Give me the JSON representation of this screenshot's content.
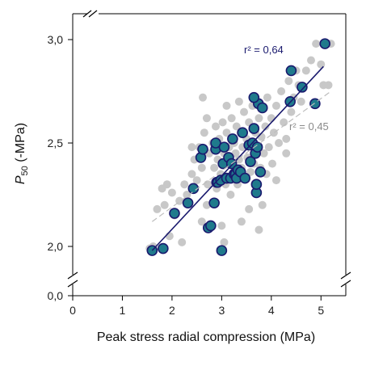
{
  "chart_data": {
    "type": "scatter",
    "xlabel": "Peak stress radial compression (MPa)",
    "ylabel_main": "P",
    "ylabel_sub": "50",
    "ylabel_rest": " (-MPa)",
    "xlim": [
      0,
      5.5
    ],
    "ylim_broken": [
      2.0,
      3.0
    ],
    "x_ticks": [
      {
        "value": 0,
        "label": "0"
      },
      {
        "value": 1,
        "label": "1"
      },
      {
        "value": 2,
        "label": "2"
      },
      {
        "value": 3,
        "label": "3"
      },
      {
        "value": 4,
        "label": "4"
      },
      {
        "value": 5,
        "label": "5"
      }
    ],
    "y_ticks": [
      {
        "value": 2.0,
        "label": "2,0"
      },
      {
        "value": 2.5,
        "label": "2,5"
      },
      {
        "value": 3.0,
        "label": "3,0"
      }
    ],
    "y_zero_label": "0,0",
    "series": [
      {
        "color": "#c8c8c8",
        "points": [
          [
            1.55,
            1.99
          ],
          [
            1.62,
            2.0
          ],
          [
            1.7,
            2.18
          ],
          [
            1.85,
            2.2
          ],
          [
            1.95,
            2.05
          ],
          [
            2.05,
            2.15
          ],
          [
            2.15,
            2.22
          ],
          [
            2.25,
            2.3
          ],
          [
            2.3,
            2.25
          ],
          [
            2.4,
            2.35
          ],
          [
            2.45,
            2.42
          ],
          [
            2.5,
            2.32
          ],
          [
            2.55,
            2.48
          ],
          [
            2.6,
            2.38
          ],
          [
            2.62,
            2.72
          ],
          [
            2.65,
            2.55
          ],
          [
            2.7,
            2.2
          ],
          [
            2.72,
            2.3
          ],
          [
            2.75,
            2.45
          ],
          [
            2.8,
            2.1
          ],
          [
            2.82,
            2.5
          ],
          [
            2.85,
            2.38
          ],
          [
            2.88,
            2.58
          ],
          [
            2.9,
            2.28
          ],
          [
            2.92,
            2.42
          ],
          [
            2.95,
            2.52
          ],
          [
            2.98,
            2.35
          ],
          [
            3.0,
            2.1
          ],
          [
            3.02,
            2.6
          ],
          [
            3.05,
            2.45
          ],
          [
            3.08,
            2.3
          ],
          [
            3.1,
            2.55
          ],
          [
            3.12,
            2.4
          ],
          [
            3.15,
            2.48
          ],
          [
            3.18,
            2.25
          ],
          [
            3.2,
            2.62
          ],
          [
            3.22,
            2.35
          ],
          [
            3.25,
            2.5
          ],
          [
            3.28,
            2.45
          ],
          [
            3.3,
            2.58
          ],
          [
            3.32,
            2.3
          ],
          [
            3.35,
            2.42
          ],
          [
            3.38,
            2.55
          ],
          [
            3.4,
            2.38
          ],
          [
            3.42,
            2.48
          ],
          [
            3.45,
            2.65
          ],
          [
            3.48,
            2.33
          ],
          [
            3.5,
            2.52
          ],
          [
            3.52,
            2.43
          ],
          [
            3.55,
            2.6
          ],
          [
            3.58,
            2.36
          ],
          [
            3.6,
            2.5
          ],
          [
            3.62,
            2.68
          ],
          [
            3.65,
            2.4
          ],
          [
            3.68,
            2.55
          ],
          [
            3.7,
            2.3
          ],
          [
            3.72,
            2.46
          ],
          [
            3.75,
            2.62
          ],
          [
            3.78,
            2.38
          ],
          [
            3.8,
            2.53
          ],
          [
            3.82,
            2.2
          ],
          [
            3.85,
            2.45
          ],
          [
            3.88,
            2.58
          ],
          [
            3.9,
            2.35
          ],
          [
            3.92,
            2.72
          ],
          [
            3.95,
            2.48
          ],
          [
            4.0,
            2.62
          ],
          [
            4.02,
            2.4
          ],
          [
            4.05,
            2.55
          ],
          [
            4.1,
            2.68
          ],
          [
            4.15,
            2.5
          ],
          [
            4.2,
            2.75
          ],
          [
            4.25,
            2.6
          ],
          [
            4.3,
            2.52
          ],
          [
            4.35,
            2.8
          ],
          [
            4.4,
            2.65
          ],
          [
            4.45,
            2.72
          ],
          [
            4.5,
            2.85
          ],
          [
            4.55,
            2.78
          ],
          [
            4.6,
            2.7
          ],
          [
            4.7,
            2.85
          ],
          [
            4.8,
            2.9
          ],
          [
            4.9,
            2.98
          ],
          [
            5.0,
            2.88
          ],
          [
            5.05,
            2.78
          ],
          [
            5.1,
            2.98
          ],
          [
            5.15,
            2.78
          ],
          [
            5.2,
            2.98
          ],
          [
            2.2,
            2.02
          ],
          [
            2.6,
            2.12
          ],
          [
            3.05,
            2.02
          ],
          [
            3.4,
            2.12
          ],
          [
            3.55,
            2.18
          ],
          [
            3.75,
            2.08
          ],
          [
            4.1,
            2.32
          ],
          [
            4.3,
            2.45
          ],
          [
            2.4,
            2.48
          ],
          [
            2.7,
            2.62
          ],
          [
            3.1,
            2.68
          ],
          [
            3.35,
            2.7
          ],
          [
            1.8,
            2.28
          ],
          [
            1.9,
            2.3
          ],
          [
            2.0,
            2.26
          ]
        ]
      },
      {
        "color": "#1f7a8c",
        "stroke": "#1a1a6e",
        "points": [
          [
            1.6,
            1.98
          ],
          [
            1.82,
            1.99
          ],
          [
            2.05,
            2.16
          ],
          [
            2.32,
            2.21
          ],
          [
            2.43,
            2.28
          ],
          [
            2.58,
            2.43
          ],
          [
            2.62,
            2.47
          ],
          [
            2.73,
            2.09
          ],
          [
            2.78,
            2.1
          ],
          [
            2.85,
            2.21
          ],
          [
            2.88,
            2.47
          ],
          [
            2.88,
            2.5
          ],
          [
            2.9,
            2.31
          ],
          [
            2.92,
            2.31
          ],
          [
            2.98,
            2.32
          ],
          [
            3.0,
            1.98
          ],
          [
            3.03,
            2.4
          ],
          [
            3.05,
            2.48
          ],
          [
            3.1,
            2.33
          ],
          [
            3.14,
            2.43
          ],
          [
            3.18,
            2.33
          ],
          [
            3.2,
            2.4
          ],
          [
            3.22,
            2.52
          ],
          [
            3.25,
            2.35
          ],
          [
            3.28,
            2.35
          ],
          [
            3.3,
            2.33
          ],
          [
            3.33,
            2.37
          ],
          [
            3.38,
            2.36
          ],
          [
            3.42,
            2.55
          ],
          [
            3.47,
            2.33
          ],
          [
            3.55,
            2.49
          ],
          [
            3.58,
            2.41
          ],
          [
            3.62,
            2.5
          ],
          [
            3.65,
            2.57
          ],
          [
            3.68,
            2.45
          ],
          [
            3.7,
            2.26
          ],
          [
            3.7,
            2.3
          ],
          [
            3.72,
            2.48
          ],
          [
            3.74,
            2.69
          ],
          [
            3.78,
            2.36
          ],
          [
            3.82,
            2.67
          ],
          [
            3.65,
            2.72
          ],
          [
            4.38,
            2.7
          ],
          [
            4.4,
            2.85
          ],
          [
            4.62,
            2.77
          ],
          [
            4.88,
            2.69
          ],
          [
            5.08,
            2.98
          ]
        ]
      }
    ],
    "fit_lines": [
      {
        "label": "r² = 0,64",
        "color": "#1a1a6e",
        "style": "solid",
        "x": [
          1.6,
          5.05
        ],
        "y": [
          1.98,
          2.87
        ]
      },
      {
        "label": "r² = 0,45",
        "color": "#bdbdbd",
        "style": "dashed",
        "x": [
          1.6,
          5.2
        ],
        "y": [
          2.12,
          2.75
        ]
      }
    ]
  }
}
